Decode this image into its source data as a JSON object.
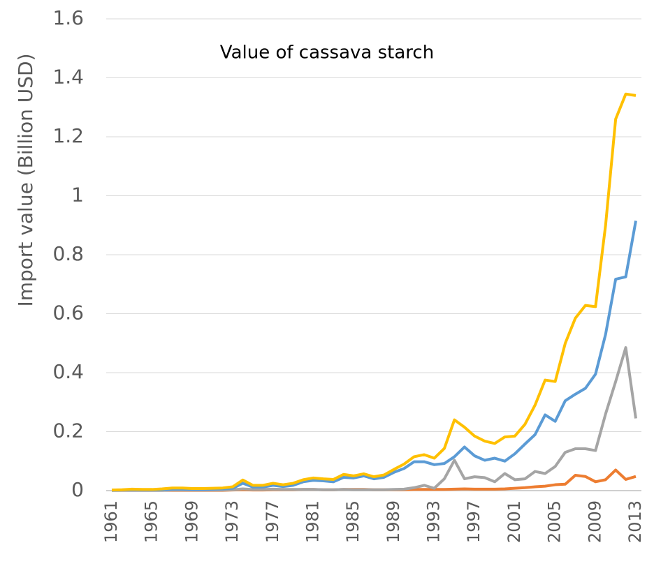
{
  "chart_data": {
    "type": "line",
    "title": "Value of cassava starch",
    "y_label": "Import value (Billion USD)",
    "x": [
      1961,
      1962,
      1963,
      1964,
      1965,
      1966,
      1967,
      1968,
      1969,
      1970,
      1971,
      1972,
      1973,
      1974,
      1975,
      1976,
      1977,
      1978,
      1979,
      1980,
      1981,
      1982,
      1983,
      1984,
      1985,
      1986,
      1987,
      1988,
      1989,
      1990,
      1991,
      1992,
      1993,
      1994,
      1995,
      1996,
      1997,
      1998,
      1999,
      2000,
      2001,
      2002,
      2003,
      2004,
      2005,
      2006,
      2007,
      2008,
      2009,
      2010,
      2011,
      2012,
      2013
    ],
    "xlim": [
      1961,
      2013
    ],
    "xticks": [
      1961,
      1965,
      1969,
      1973,
      1977,
      1981,
      1985,
      1989,
      1993,
      1997,
      2001,
      2005,
      2009,
      2013
    ],
    "ylim": [
      0,
      1.6
    ],
    "yticks": [
      0,
      0.2,
      0.4,
      0.6,
      0.8,
      1,
      1.2,
      1.4,
      1.6
    ],
    "grid": true,
    "series": [
      {
        "color": "#ffc000",
        "values": [
          0.002,
          0.003,
          0.005,
          0.004,
          0.004,
          0.006,
          0.009,
          0.009,
          0.007,
          0.007,
          0.008,
          0.009,
          0.013,
          0.036,
          0.018,
          0.018,
          0.025,
          0.02,
          0.025,
          0.037,
          0.043,
          0.04,
          0.038,
          0.055,
          0.05,
          0.057,
          0.047,
          0.053,
          0.072,
          0.09,
          0.115,
          0.122,
          0.11,
          0.143,
          0.24,
          0.215,
          0.185,
          0.168,
          0.16,
          0.182,
          0.185,
          0.225,
          0.29,
          0.375,
          0.37,
          0.5,
          0.585,
          0.628,
          0.624,
          0.9,
          1.26,
          1.345,
          1.34
        ]
      },
      {
        "color": "#5b9bd5",
        "values": [
          0.001,
          0.002,
          0.003,
          0.002,
          0.002,
          0.003,
          0.005,
          0.005,
          0.004,
          0.004,
          0.005,
          0.006,
          0.008,
          0.025,
          0.012,
          0.012,
          0.018,
          0.014,
          0.018,
          0.03,
          0.035,
          0.033,
          0.03,
          0.045,
          0.043,
          0.05,
          0.04,
          0.045,
          0.062,
          0.075,
          0.098,
          0.098,
          0.088,
          0.092,
          0.115,
          0.148,
          0.118,
          0.103,
          0.11,
          0.1,
          0.125,
          0.158,
          0.19,
          0.257,
          0.235,
          0.305,
          0.327,
          0.347,
          0.395,
          0.53,
          0.717,
          0.725,
          0.915
        ]
      },
      {
        "color": "#a5a5a5",
        "values": [
          0.001,
          0.001,
          0.001,
          0.001,
          0.001,
          0.001,
          0.002,
          0.002,
          0.002,
          0.002,
          0.002,
          0.002,
          0.003,
          0.006,
          0.004,
          0.004,
          0.005,
          0.004,
          0.004,
          0.004,
          0.004,
          0.003,
          0.003,
          0.004,
          0.003,
          0.003,
          0.003,
          0.003,
          0.004,
          0.005,
          0.01,
          0.018,
          0.008,
          0.04,
          0.103,
          0.04,
          0.047,
          0.044,
          0.03,
          0.058,
          0.037,
          0.04,
          0.065,
          0.058,
          0.082,
          0.13,
          0.142,
          0.142,
          0.136,
          0.26,
          0.37,
          0.485,
          0.245
        ]
      },
      {
        "color": "#ed7d31",
        "values": [
          0.001,
          0.001,
          0.001,
          0.001,
          0.001,
          0.001,
          0.001,
          0.001,
          0.001,
          0.001,
          0.001,
          0.001,
          0.002,
          0.003,
          0.002,
          0.002,
          0.003,
          0.003,
          0.003,
          0.004,
          0.004,
          0.003,
          0.003,
          0.004,
          0.004,
          0.004,
          0.003,
          0.003,
          0.003,
          0.003,
          0.004,
          0.004,
          0.004,
          0.004,
          0.005,
          0.006,
          0.005,
          0.005,
          0.005,
          0.006,
          0.008,
          0.01,
          0.013,
          0.015,
          0.02,
          0.022,
          0.052,
          0.048,
          0.03,
          0.037,
          0.07,
          0.038,
          0.048
        ]
      }
    ]
  }
}
